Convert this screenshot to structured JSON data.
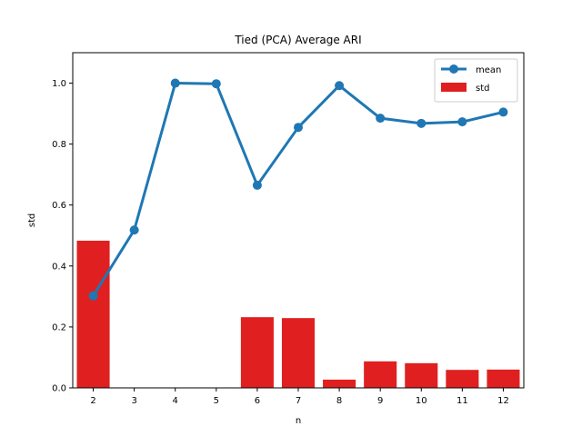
{
  "chart_data": {
    "type": "bar",
    "title": "Tied (PCA) Average ARI",
    "xlabel": "n",
    "ylabel": "std",
    "categories": [
      "2",
      "3",
      "4",
      "5",
      "6",
      "7",
      "8",
      "9",
      "10",
      "11",
      "12"
    ],
    "ylim": [
      0,
      1.1
    ],
    "yticks": [
      "0.0",
      "0.2",
      "0.4",
      "0.6",
      "0.8",
      "1.0"
    ],
    "grid": false,
    "legend_position": "top-right",
    "series": [
      {
        "name": "mean",
        "kind": "line",
        "color": "#1f77b4",
        "values": [
          0.302,
          0.518,
          1.0,
          0.998,
          0.665,
          0.855,
          0.992,
          0.885,
          0.868,
          0.873,
          0.905
        ]
      },
      {
        "name": "std",
        "kind": "bar",
        "color": "#e02020",
        "values": [
          0.483,
          0.0,
          0.0,
          0.0,
          0.232,
          0.229,
          0.027,
          0.087,
          0.081,
          0.059,
          0.06
        ]
      }
    ]
  }
}
